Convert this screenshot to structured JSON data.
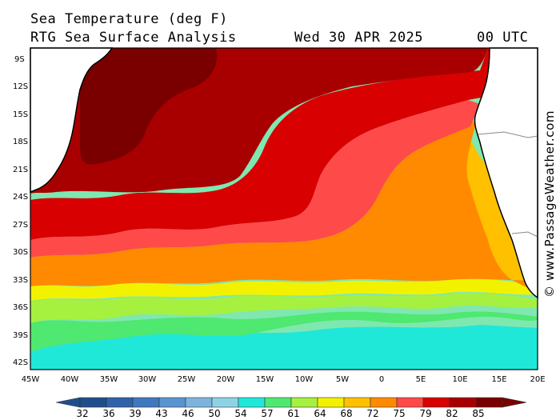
{
  "header": {
    "title": "Sea Temperature (deg F)",
    "subtitle": "RTG Sea Surface Analysis",
    "date": "Wed 30 APR 2025",
    "time": "00 UTC"
  },
  "credit": "© www.PassageWeather.com",
  "lat_labels": [
    "9S",
    "12S",
    "15S",
    "18S",
    "21S",
    "24S",
    "27S",
    "30S",
    "33S",
    "36S",
    "39S",
    "42S"
  ],
  "lon_labels": [
    "45W",
    "40W",
    "35W",
    "30W",
    "25W",
    "20W",
    "15W",
    "10W",
    "5W",
    "0",
    "5E",
    "10E",
    "15E",
    "20E"
  ],
  "legend": {
    "values": [
      "32",
      "36",
      "39",
      "43",
      "46",
      "50",
      "54",
      "57",
      "61",
      "64",
      "68",
      "72",
      "75",
      "79",
      "82",
      "85"
    ],
    "colors": [
      "#1f4e8c",
      "#2f62a8",
      "#3f78be",
      "#5a94cf",
      "#7eb4dc",
      "#8ed2e8",
      "#20e8d8",
      "#4fe870",
      "#a6f040",
      "#f2f200",
      "#ffc000",
      "#ff8a00",
      "#ff4a4a",
      "#d80000",
      "#a80000",
      "#7a0000"
    ]
  },
  "map": {
    "bounds": {
      "lon_min": -45,
      "lon_max": 20,
      "lat_min": -42,
      "lat_max": -9
    },
    "land_color": "#ffffff",
    "coast_color": "#000000"
  }
}
